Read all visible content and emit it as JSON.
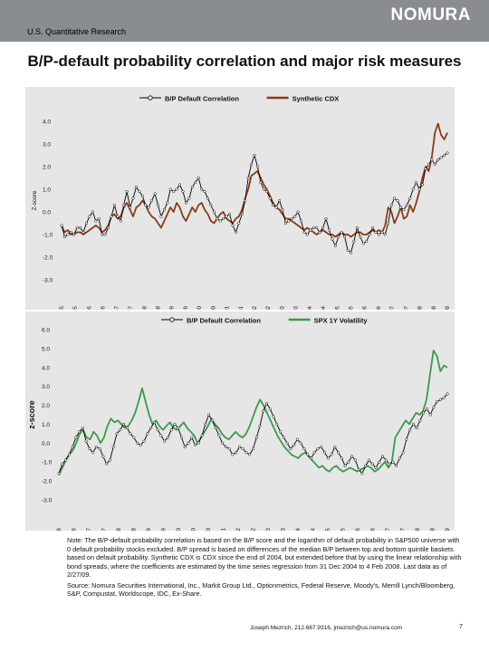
{
  "header": {
    "section_label": "U.S. Quantitative Research",
    "logo_text": "NOMURA",
    "title": "B/P-default probability correlation and major risk measures"
  },
  "colors": {
    "header_gray": "#8a8d90",
    "panel_background": "#e6e6e6",
    "bp_series": "#000000",
    "cdx_series": "#8b3a16",
    "volatility_series": "#3a9a4a"
  },
  "chart_data": [
    {
      "type": "line",
      "ylabel": "Z-score",
      "ylim": [
        -3,
        4
      ],
      "yticks": [
        "4.0",
        "3.0",
        "2.0",
        "1.0",
        "0.0",
        "-1.0",
        "-2.0",
        "-3.0"
      ],
      "yvalues": [
        4,
        3,
        2,
        1,
        0,
        -1,
        -2,
        -3
      ],
      "grid": false,
      "legend_position": "top",
      "xticks": [
        "n-95",
        "Jul-95",
        "n-96",
        "Jul-96",
        "n-97",
        "Jul-97",
        "n-98",
        "Jul-98",
        "n-99",
        "Jul-99",
        "n-00",
        "Jul-00",
        "n-01",
        "Jul-01",
        "n-02",
        "Jul-02",
        "n-03",
        "Jul-03",
        "n-04",
        "Jul-04",
        "n-05",
        "Jul-05",
        "n-06",
        "Jul-06",
        "n-07",
        "Jul-07",
        "n-08",
        "Jul-08",
        "n-09"
      ],
      "series": [
        {
          "name": "B/P Default Correlation",
          "color": "#000000",
          "marker": "circle",
          "values": [
            -0.6,
            -1.1,
            -1.0,
            -0.9,
            -1.0,
            -0.7,
            -0.7,
            -0.9,
            -0.5,
            -0.2,
            0.0,
            -0.4,
            -0.3,
            -1.0,
            -1.0,
            -0.7,
            -0.2,
            0.3,
            -0.2,
            -0.4,
            0.3,
            0.9,
            0.2,
            0.6,
            1.1,
            0.9,
            0.7,
            0.3,
            0.2,
            0.5,
            0.8,
            0.3,
            -0.2,
            0.1,
            0.4,
            1.0,
            0.9,
            1.0,
            1.2,
            0.9,
            0.4,
            0.6,
            1.1,
            1.3,
            1.5,
            1.0,
            0.9,
            0.6,
            0.3,
            0.0,
            -0.3,
            -0.4,
            -0.3,
            -0.2,
            -0.1,
            -0.6,
            -0.9,
            -0.5,
            -0.1,
            0.5,
            1.5,
            2.1,
            2.5,
            2.0,
            1.3,
            1.0,
            0.9,
            0.6,
            0.3,
            0.2,
            0.5,
            0.1,
            -0.5,
            -0.4,
            -0.3,
            -0.2,
            0.0,
            -0.4,
            -0.9,
            -1.0,
            -0.8,
            -0.7,
            -0.7,
            -0.9,
            -0.7,
            -0.3,
            -0.8,
            -1.2,
            -1.5,
            -1.1,
            -0.9,
            -1.1,
            -1.7,
            -1.8,
            -1.3,
            -0.7,
            -1.1,
            -1.4,
            -1.3,
            -1.0,
            -0.7,
            -0.9,
            -1.0,
            -0.9,
            -1.0,
            -0.5,
            0.3,
            0.6,
            0.5,
            0.2,
            0.1,
            0.3,
            0.6,
            1.0,
            1.3,
            1.0,
            1.2,
            1.9,
            2.1,
            2.3,
            2.1,
            2.3,
            2.4,
            2.5,
            2.6
          ]
        },
        {
          "name": "Synthetic CDX",
          "color": "#8b3a16",
          "marker": "none",
          "values": [
            -0.6,
            -0.9,
            -0.8,
            -1.0,
            -1.0,
            -0.9,
            -0.9,
            -1.0,
            -0.9,
            -0.8,
            -0.7,
            -0.6,
            -0.7,
            -0.9,
            -0.8,
            -0.6,
            -0.2,
            -0.1,
            -0.3,
            -0.2,
            0.2,
            0.4,
            0.1,
            -0.2,
            0.2,
            0.3,
            0.5,
            0.3,
            0.0,
            -0.2,
            -0.3,
            -0.5,
            -0.7,
            -0.4,
            -0.1,
            0.2,
            0.0,
            0.4,
            0.2,
            -0.2,
            -0.4,
            -0.1,
            0.2,
            0.0,
            0.3,
            0.4,
            0.1,
            -0.1,
            -0.4,
            -0.5,
            -0.3,
            -0.1,
            0.0,
            -0.3,
            -0.4,
            -0.5,
            -0.3,
            -0.2,
            0.1,
            0.6,
            1.0,
            1.6,
            1.7,
            1.8,
            1.5,
            1.2,
            1.0,
            0.7,
            0.4,
            0.2,
            0.1,
            -0.1,
            -0.3,
            -0.3,
            -0.4,
            -0.5,
            -0.6,
            -0.7,
            -0.8,
            -0.7,
            -0.8,
            -0.9,
            -1.0,
            -0.9,
            -0.8,
            -0.9,
            -1.0,
            -1.0,
            -1.1,
            -1.0,
            -0.9,
            -1.0,
            -1.0,
            -1.1,
            -1.0,
            -0.9,
            -0.9,
            -1.0,
            -1.0,
            -0.9,
            -0.8,
            -0.9,
            -0.8,
            -0.9,
            -0.6,
            0.2,
            0.0,
            -0.5,
            -0.2,
            0.2,
            -0.3,
            -0.2,
            0.3,
            0.0,
            0.4,
            0.9,
            1.5,
            2.0,
            1.8,
            2.4,
            3.5,
            3.9,
            3.4,
            3.2,
            3.5
          ]
        }
      ]
    },
    {
      "type": "line",
      "ylabel": "z-score",
      "ylim": [
        -3,
        6
      ],
      "yticks": [
        "6.0",
        "5.0",
        "4.0",
        "3.0",
        "2.0",
        "1.0",
        "0.0",
        "-1.0",
        "-2.0",
        "-3.0"
      ],
      "yvalues": [
        6,
        5,
        4,
        3,
        2,
        1,
        0,
        -1,
        -2,
        -3
      ],
      "grid": false,
      "legend_position": "top",
      "xticks": [
        "Jan-96",
        "Jul-96",
        "Jan-97",
        "Jul-97",
        "Jan-98",
        "Jul-98",
        "Jan-99",
        "Jul-99",
        "Jan-00",
        "Jul-00",
        "Jan-0",
        "Jul-01",
        "Jan-02",
        "Jul-02",
        "Jan-03",
        "Jul-03",
        "Jan-04",
        "Jul-04",
        "Jan-05",
        "Jul-05",
        "Jan-06",
        "Jul-06",
        "Jan-07",
        "Jul-07",
        "Jan-08",
        "Jul-08",
        "Jan-09"
      ],
      "series": [
        {
          "name": "B/P Default Correlation",
          "color": "#000000",
          "marker": "circle",
          "values": [
            -1.6,
            -1.1,
            -0.9,
            -0.6,
            -0.2,
            0.3,
            0.6,
            0.8,
            0.1,
            -0.3,
            -0.5,
            -0.2,
            -0.3,
            -0.7,
            -1.1,
            -0.9,
            -0.2,
            0.5,
            0.7,
            1.0,
            0.8,
            0.5,
            0.3,
            0.0,
            -0.1,
            0.1,
            0.5,
            0.8,
            1.1,
            0.7,
            0.4,
            0.1,
            0.3,
            0.7,
            1.0,
            0.8,
            0.3,
            -0.2,
            0.0,
            0.3,
            -0.1,
            0.0,
            0.4,
            1.0,
            1.5,
            1.2,
            0.8,
            0.4,
            0.0,
            -0.2,
            -0.3,
            -0.6,
            -0.5,
            -0.2,
            -0.3,
            -0.5,
            -0.6,
            -0.3,
            0.3,
            0.9,
            1.7,
            2.1,
            1.8,
            1.4,
            1.0,
            0.6,
            0.3,
            0.0,
            -0.3,
            -0.1,
            0.2,
            0.0,
            -0.3,
            -0.6,
            -0.8,
            -0.5,
            -0.3,
            -0.2,
            -0.5,
            -0.8,
            -0.6,
            -0.2,
            -0.5,
            -0.8,
            -1.2,
            -1.0,
            -0.7,
            -0.9,
            -1.4,
            -1.6,
            -1.2,
            -0.9,
            -1.1,
            -1.3,
            -1.0,
            -0.7,
            -0.9,
            -1.1,
            -1.0,
            -1.2,
            -0.8,
            -0.5,
            0.2,
            0.7,
            1.0,
            0.8,
            1.2,
            1.6,
            1.8,
            1.5,
            1.9,
            2.2,
            2.3,
            2.4,
            2.6
          ]
        },
        {
          "name": "SPX 1Y Volatility",
          "color": "#3a9a4a",
          "marker": "none",
          "values": [
            -1.7,
            -1.3,
            -0.9,
            -0.6,
            -0.4,
            0.0,
            0.5,
            0.7,
            0.3,
            0.2,
            0.6,
            0.4,
            0.0,
            0.3,
            0.9,
            1.3,
            1.1,
            1.2,
            1.0,
            0.8,
            0.9,
            1.2,
            1.6,
            2.2,
            2.9,
            2.2,
            1.5,
            1.0,
            1.2,
            0.9,
            0.7,
            0.9,
            1.1,
            0.8,
            0.7,
            0.9,
            1.1,
            0.8,
            0.6,
            0.4,
            0.0,
            0.3,
            0.6,
            0.9,
            1.3,
            1.0,
            0.8,
            0.5,
            0.3,
            0.2,
            0.4,
            0.6,
            0.4,
            0.3,
            0.5,
            0.9,
            1.4,
            1.9,
            2.3,
            2.0,
            1.6,
            1.2,
            0.8,
            0.4,
            0.1,
            -0.2,
            -0.4,
            -0.6,
            -0.7,
            -0.8,
            -0.6,
            -0.5,
            -0.7,
            -0.9,
            -1.1,
            -1.3,
            -1.2,
            -1.4,
            -1.5,
            -1.3,
            -1.2,
            -1.4,
            -1.5,
            -1.4,
            -1.3,
            -1.4,
            -1.5,
            -1.4,
            -1.3,
            -1.2,
            -1.3,
            -1.5,
            -1.4,
            -1.2,
            -1.0,
            -1.3,
            -1.0,
            0.3,
            0.6,
            0.9,
            1.2,
            1.0,
            1.3,
            1.6,
            1.5,
            1.7,
            2.3,
            3.6,
            4.9,
            4.6,
            3.8,
            4.1,
            4.0
          ]
        }
      ]
    }
  ],
  "notes": {
    "paragraph1": "Note: The B/P-default probability correlation is based on the B/P score and the logarithm of default probability in S&P500 universe with 0 default probability stocks excluded. B/P spread is based on differences of the median B/P between top and bottom quintile baskets based on default probability. Synthetic CDX is CDX since the end of 2004, but extended before that by using the linear relationship with bond spreads, where the coefficients are estimated by the time series regression from 31 Dec 2004 to 4 Feb 2008. Last data as of 2/27/09.",
    "paragraph2": "Source: Nomura Securities International, Inc., Markit Group Ltd., Optionmetrics, Federal Reserve, Moody's, Merrill Lynch/Bloomberg, S&P, Compustat, Worldscope, IDC, Ex-Share."
  },
  "footer": {
    "contact": "Joseph Mezrich, 212.667.9316, jmezrich@us.nomura.com",
    "page_number": "7"
  }
}
